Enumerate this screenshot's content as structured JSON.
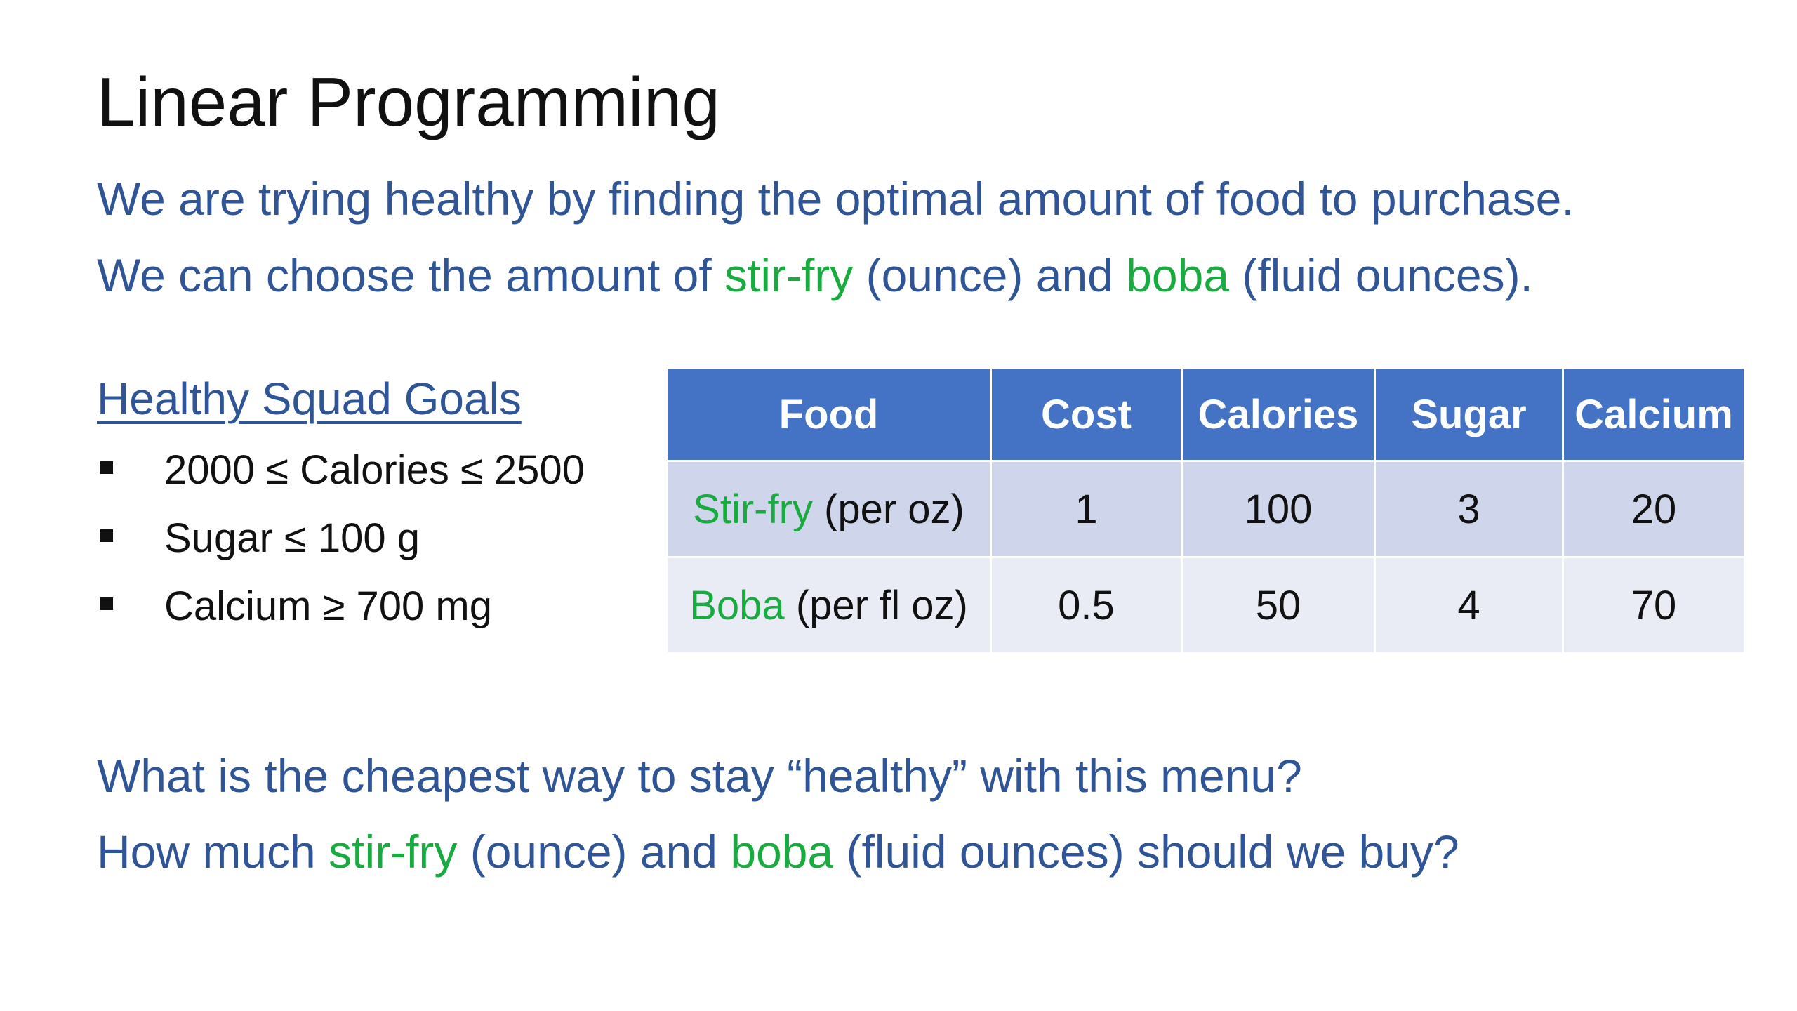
{
  "slide": {
    "title": "Linear Programming",
    "intro": {
      "line1": "We are trying healthy by finding the optimal amount of food to purchase.",
      "line2": {
        "part1": "We can choose the amount of ",
        "item1": "stir-fry",
        "part2": " (ounce) and ",
        "item2": "boba",
        "part3": " (fluid ounces)."
      }
    },
    "goals": {
      "heading": "Healthy Squad Goals",
      "items": [
        "2000 ≤ Calories ≤ 2500",
        "Sugar ≤ 100 g",
        "Calcium ≥ 700 mg"
      ]
    },
    "table": {
      "headers": [
        "Food",
        "Cost",
        "Calories",
        "Sugar",
        "Calcium"
      ],
      "rows": [
        {
          "food": "Stir-fry",
          "unit": " (per oz)",
          "cost": "1",
          "calories": "100",
          "sugar": "3",
          "calcium": "20"
        },
        {
          "food": "Boba",
          "unit": " (per fl oz)",
          "cost": "0.5",
          "calories": "50",
          "sugar": "4",
          "calcium": "70"
        }
      ]
    },
    "question": {
      "line1": "What is the cheapest way to stay “healthy” with this menu?",
      "line2": {
        "part1": "How much ",
        "item1": "stir-fry",
        "part2": " (ounce) and ",
        "item2": "boba",
        "part3": " (fluid ounces) should we buy?"
      }
    },
    "colors": {
      "body_text": "#2f5597",
      "highlight": "#1aab40",
      "table_header": "#4472c4",
      "table_row_1": "#cfd5ea",
      "table_row_2": "#e9ebf5"
    }
  }
}
